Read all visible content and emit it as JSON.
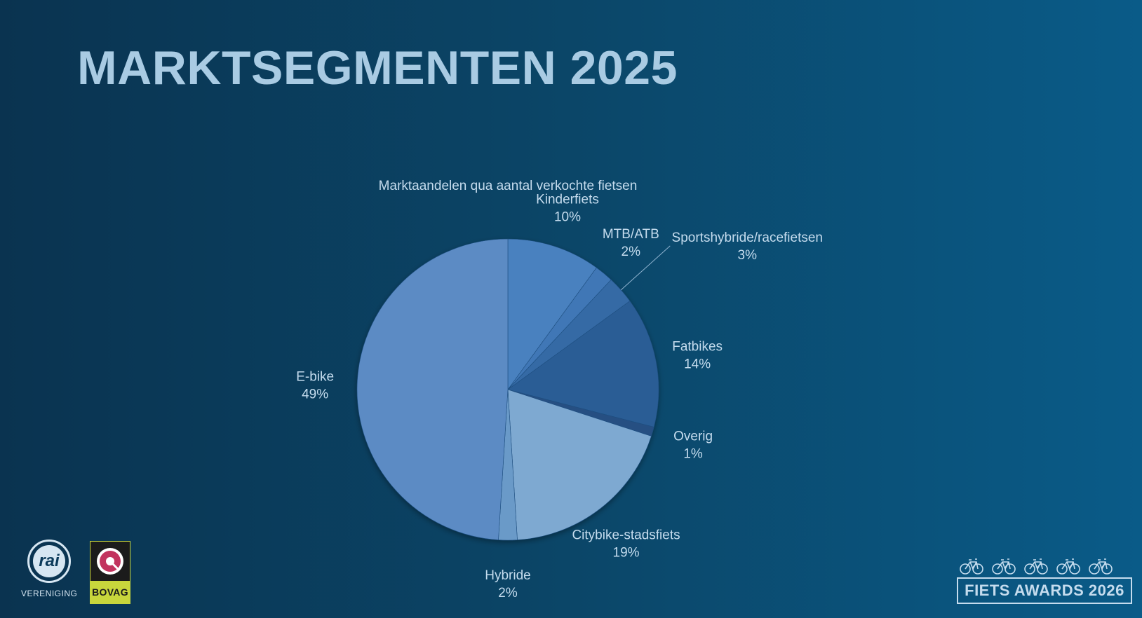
{
  "title": "MARKTSEGMENTEN 2025",
  "chart_data": {
    "type": "pie",
    "title": "Marktaandelen qua aantal verkochte fietsen",
    "slices": [
      {
        "label": "Kinderfiets",
        "value": 10,
        "value_label": "10%",
        "color": "#4a81bf"
      },
      {
        "label": "MTB/ATB",
        "value": 2,
        "value_label": "2%",
        "color": "#3f77b6"
      },
      {
        "label": "Sportshybride/racefietsen",
        "value": 3,
        "value_label": "3%",
        "color": "#346aa5"
      },
      {
        "label": "Fatbikes",
        "value": 14,
        "value_label": "14%",
        "color": "#2b5d95"
      },
      {
        "label": "Overig",
        "value": 1,
        "value_label": "1%",
        "color": "#254f82"
      },
      {
        "label": "Citybike-stadsfiets",
        "value": 19,
        "value_label": "19%",
        "color": "#7ea9d1"
      },
      {
        "label": "Hybride",
        "value": 2,
        "value_label": "2%",
        "color": "#6b9ac8"
      },
      {
        "label": "E-bike",
        "value": 49,
        "value_label": "49%",
        "color": "#5b8bc4"
      }
    ]
  },
  "logos": {
    "rai": {
      "mark": "rai",
      "subtitle": "VERENIGING"
    },
    "bovag": {
      "text": "BOVAG"
    },
    "awards": {
      "text": "FIETS AWARDS 2026"
    }
  }
}
